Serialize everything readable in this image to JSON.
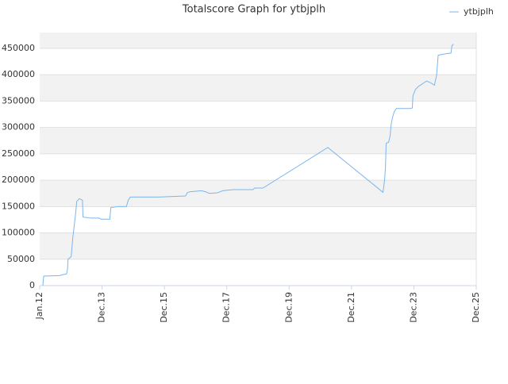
{
  "chart_data": {
    "type": "line",
    "title": "Totalscore Graph for ytbjplh",
    "x": [
      2012.1,
      2012.13,
      2012.63,
      2012.76,
      2012.86,
      2012.89,
      2012.91,
      2013.01,
      2013.06,
      2013.14,
      2013.19,
      2013.27,
      2013.37,
      2013.39,
      2013.65,
      2013.9,
      2013.97,
      2014.25,
      2014.28,
      2014.53,
      2014.78,
      2014.84,
      2014.91,
      2015.8,
      2016.68,
      2016.73,
      2016.81,
      2017.19,
      2017.32,
      2017.44,
      2017.7,
      2017.87,
      2018.2,
      2018.84,
      2018.89,
      2019.16,
      2021.24,
      2023.01,
      2023.06,
      2023.09,
      2023.11,
      2023.19,
      2023.24,
      2023.27,
      2023.32,
      2023.37,
      2023.44,
      2023.9,
      2023.95,
      2023.97,
      2024.05,
      2024.15,
      2024.41,
      2024.53,
      2024.66,
      2024.73,
      2024.78,
      2025.04,
      2025.19,
      2025.22,
      2025.27
    ],
    "series": [
      {
        "name": "ytbjplh",
        "color": "#7cb5ec",
        "values": [
          0,
          18000,
          19000,
          21000,
          22000,
          30000,
          50000,
          55000,
          90000,
          130000,
          160000,
          165000,
          162000,
          130000,
          128000,
          128000,
          126000,
          126000,
          148000,
          150000,
          150000,
          162000,
          168000,
          168000,
          170000,
          176000,
          178000,
          180000,
          178000,
          175000,
          176000,
          180000,
          182000,
          182000,
          185000,
          185000,
          262000,
          177000,
          200000,
          225000,
          270000,
          272000,
          285000,
          305000,
          320000,
          330000,
          336000,
          336000,
          337000,
          360000,
          372000,
          378000,
          388000,
          385000,
          380000,
          400000,
          437000,
          440000,
          441000,
          455000,
          458000
        ]
      }
    ],
    "xlim": [
      2012,
      2026
    ],
    "xticks": [
      {
        "value": 2012,
        "label": "Jan.12"
      },
      {
        "value": 2014,
        "label": "Dec.13"
      },
      {
        "value": 2016,
        "label": "Dec.15"
      },
      {
        "value": 2018,
        "label": "Dec.17"
      },
      {
        "value": 2020,
        "label": "Dec.19"
      },
      {
        "value": 2022,
        "label": "Dec.21"
      },
      {
        "value": 2024,
        "label": "Dec.23"
      },
      {
        "value": 2026,
        "label": "Dec.25"
      }
    ],
    "ylim": [
      0,
      480000
    ],
    "yticks": [
      0,
      50000,
      100000,
      150000,
      200000,
      250000,
      300000,
      350000,
      400000,
      450000
    ],
    "grid": true,
    "legend": "top-right"
  }
}
